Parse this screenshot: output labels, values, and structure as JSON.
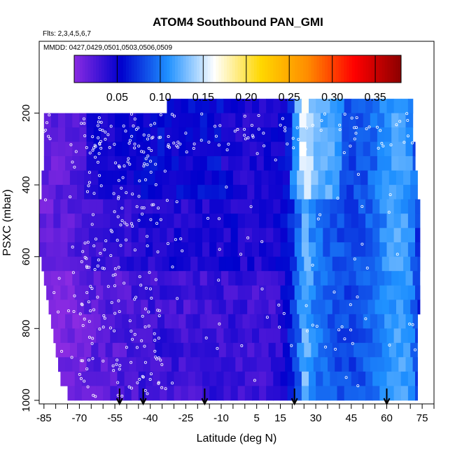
{
  "chart_data": {
    "type": "heatmap",
    "title": "ATOM4 Southbound PAN_GMI",
    "subtitle_flights": "Flts: 2,3,4,5,6,7",
    "subtitle_dates": "MMDD: 0427,0429,0501,0503,0506,0509",
    "xlabel": "Latitude (deg N)",
    "ylabel": "PSXC (mbar)",
    "xlim": [
      -87,
      80
    ],
    "ylim": [
      1010,
      0
    ],
    "y_inverted": true,
    "x_ticks": [
      "-85",
      "-70",
      "-55",
      "-40",
      "-25",
      "-10",
      "5",
      "15",
      "30",
      "45",
      "60",
      "75"
    ],
    "x_tick_values": [
      -85,
      -70,
      -55,
      -40,
      -25,
      -10,
      5,
      15,
      30,
      45,
      60,
      75
    ],
    "x_minor_step": 5,
    "y_ticks": [
      "200",
      "400",
      "600",
      "800",
      "1000"
    ],
    "y_tick_values": [
      200,
      400,
      600,
      800,
      1000
    ],
    "colorbar": {
      "range": [
        0,
        0.38
      ],
      "tick_labels": [
        "0.05",
        "0.10",
        "0.15",
        "0.20",
        "0.25",
        "0.30",
        "0.35"
      ],
      "tick_values": [
        0.05,
        0.1,
        0.15,
        0.2,
        0.25,
        0.3,
        0.35
      ],
      "colors": [
        "#8a2be2",
        "#0000cd",
        "#1e90ff",
        "#ffffff",
        "#ffd700",
        "#ff8c00",
        "#ff0000",
        "#8b0000"
      ]
    },
    "pressure_levels": [
      180,
      220,
      260,
      300,
      340,
      380,
      420,
      460,
      500,
      540,
      580,
      620,
      660,
      700,
      740,
      780,
      820,
      860,
      900,
      940,
      980
    ],
    "row_x_extent": [
      [
        -33,
        71
      ],
      [
        -85,
        71
      ],
      [
        -85,
        71
      ],
      [
        -85,
        72
      ],
      [
        -85,
        72
      ],
      [
        -86,
        73
      ],
      [
        -86,
        73
      ],
      [
        -87,
        74
      ],
      [
        -87,
        74
      ],
      [
        -87,
        74
      ],
      [
        -87,
        74
      ],
      [
        -86,
        74
      ],
      [
        -85,
        74
      ],
      [
        -84,
        74
      ],
      [
        -83,
        74
      ],
      [
        -82,
        73
      ],
      [
        -81,
        73
      ],
      [
        -80,
        73
      ],
      [
        -79,
        73
      ],
      [
        -78,
        73
      ],
      [
        -75,
        73
      ]
    ],
    "stops": [
      [
        -87,
        0.014
      ],
      [
        -75,
        0.018
      ],
      [
        -65,
        0.03
      ],
      [
        -55,
        0.034
      ],
      [
        -45,
        0.04
      ],
      [
        -35,
        0.045
      ],
      [
        -25,
        0.04
      ],
      [
        -15,
        0.044
      ],
      [
        -5,
        0.046
      ],
      [
        5,
        0.042
      ],
      [
        12,
        0.044
      ],
      [
        18,
        0.055
      ],
      [
        22,
        0.085
      ],
      [
        25,
        0.13
      ],
      [
        30,
        0.1
      ],
      [
        38,
        0.085
      ],
      [
        45,
        0.08
      ],
      [
        50,
        0.085
      ],
      [
        55,
        0.095
      ],
      [
        60,
        0.11
      ],
      [
        65,
        0.12
      ],
      [
        70,
        0.11
      ],
      [
        74,
        0.07
      ]
    ],
    "arrow_latitudes": [
      -53,
      -43,
      -17,
      21,
      60
    ]
  }
}
